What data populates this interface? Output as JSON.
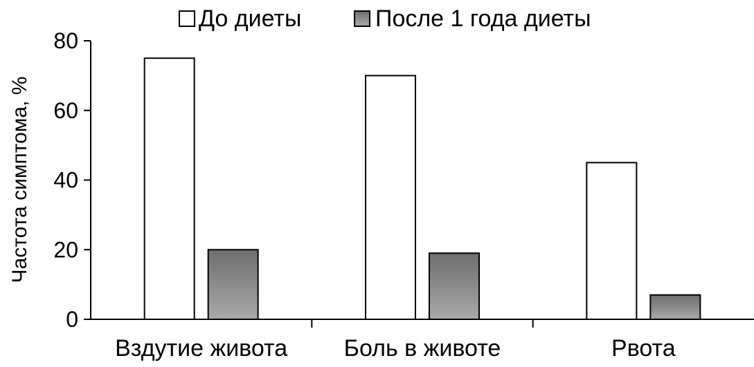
{
  "chart_data": {
    "type": "bar",
    "categories": [
      "Вздутие живота",
      "Боль в животе",
      "Рвота"
    ],
    "series": [
      {
        "name": "До диеты",
        "values": [
          75,
          70,
          45
        ],
        "color": "#ffffff"
      },
      {
        "name": "После 1 года диеты",
        "values": [
          20,
          19,
          7
        ],
        "color": "#8a8a8a"
      }
    ],
    "title": "",
    "xlabel": "",
    "ylabel": "Частота симптома, %",
    "ylim": [
      0,
      80
    ],
    "yticks": [
      0,
      20,
      40,
      60,
      80
    ],
    "grid": false,
    "legend_position": "top"
  }
}
